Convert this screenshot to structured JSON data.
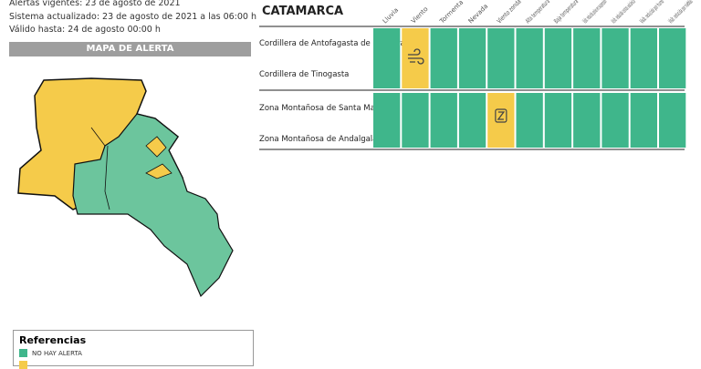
{
  "header": {
    "lines": [
      "Alertas vigentes: 23 de agosto de 2021",
      "Sistema actualizado: 23 de agosto de 2021 a las 06:00 h",
      "Válido hasta: 24 de agosto 00:00 h"
    ]
  },
  "map": {
    "title": "MAPA DE ALERTA"
  },
  "references": {
    "title": "Referencias",
    "items": [
      {
        "label": "NO HAY ALERTA",
        "color": "#3fb68b"
      },
      {
        "color": "#f5cb4a"
      }
    ]
  },
  "table": {
    "province": "CATAMARCA",
    "columns": [
      "Lluvia",
      "Viento",
      "Tormenta",
      "Nevada",
      "Viento zonda",
      "Alta temperatura",
      "Baja temperatura",
      "Visib. reducida polvo en suspensión",
      "Visib. reducida ceniza volcánica",
      "Visib. reducida por humo",
      "Visib. reducida por nieblas"
    ],
    "groups": [
      {
        "zones": [
          "Cordillera de Antofagasta de la Sierra",
          "Cordillera de Tinogasta"
        ],
        "cells": [
          "#3fb68b",
          "#f5cb4a",
          "#3fb68b",
          "#3fb68b",
          "#3fb68b",
          "#3fb68b",
          "#3fb68b",
          "#3fb68b",
          "#3fb68b",
          "#3fb68b",
          "#3fb68b"
        ]
      },
      {
        "zones": [
          "Zona Montañosa de Santa María",
          "Zona Montañosa de Andalgalá"
        ],
        "cells": [
          "#3fb68b",
          "#3fb68b",
          "#3fb68b",
          "#3fb68b",
          "#f5cb4a",
          "#3fb68b",
          "#3fb68b",
          "#3fb68b",
          "#3fb68b",
          "#3fb68b",
          "#3fb68b"
        ]
      }
    ]
  }
}
